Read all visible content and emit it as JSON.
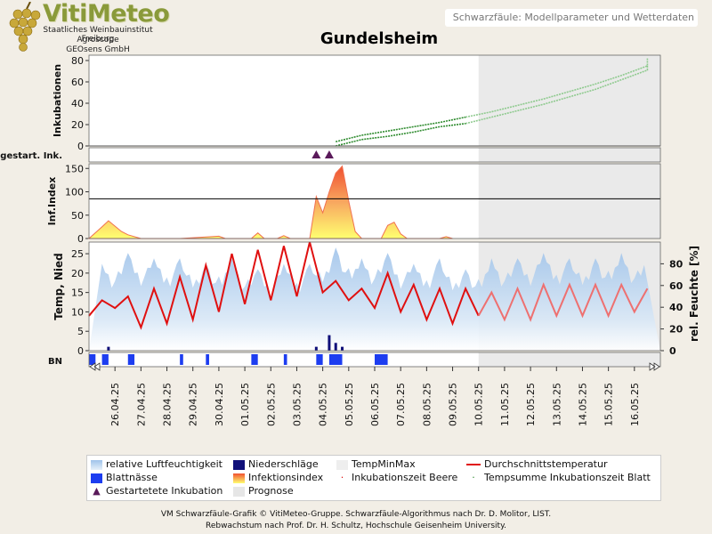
{
  "logo": {
    "title": "VitiMeteo",
    "lines": [
      "Staatliches Weinbauinstitut Freiburg",
      "Agroscope",
      "GEOsens GmbH"
    ]
  },
  "header": {
    "title": "Schwarzfäule: Modellparameter und Wetterdaten"
  },
  "location": "Gundelsheim",
  "footer": {
    "line1": "VM Schwarzfäule-Grafik © VitiMeteo-Gruppe. Schwarzfäule-Algorithmus nach Dr. D. Molitor, LIST.",
    "line2": "Rebwachstum nach Prof. Dr. H. Schultz, Hochschule Geisenheim University."
  },
  "colors": {
    "humidity": "#9fc3ea",
    "rain": "#10107a",
    "leafwet": "#1d3df0",
    "temp": "#e01010",
    "tempForecast": "#ee7070",
    "incubation": "#2e8b2e",
    "incubationForecast": "#8fca8f",
    "prognosis": "#e6e6e6",
    "marker": "#5a1a5a"
  },
  "legend": {
    "items": [
      {
        "label": "relative Luftfeuchtigkeit",
        "icon": "humidity-swatch"
      },
      {
        "label": "Niederschläge",
        "icon": "rain-swatch"
      },
      {
        "label": "TempMinMax",
        "icon": "tempminmax-swatch"
      },
      {
        "label": "Durchschnittstemperatur",
        "icon": "line-swatch"
      },
      {
        "label": "Blattnässe",
        "icon": "leafwet-swatch"
      },
      {
        "label": "Infektionsindex",
        "icon": "infection-swatch"
      },
      {
        "label": "Inkubationszeit Beere",
        "icon": "dot-swatch"
      },
      {
        "label": "Tempsumme Inkubationszeit Blatt",
        "icon": "dot-swatch"
      },
      {
        "label": "Gestartetete Inkubation",
        "icon": "triangle-swatch"
      },
      {
        "label": "Prognose",
        "icon": "prognosis-swatch"
      }
    ]
  },
  "chart_data": [
    {
      "type": "line",
      "ylabel": "Inkubationen",
      "ylim": [
        0,
        85
      ],
      "yticks": [
        0,
        20,
        40,
        60,
        80
      ],
      "threshold": 0,
      "series": [
        {
          "points": [
            [
              "04.05",
              0
            ],
            [
              "05.05",
              6
            ],
            [
              "06.05",
              9
            ],
            [
              "07.05",
              13
            ],
            [
              "08.05",
              18
            ],
            [
              "09.05",
              21
            ],
            [
              "10.05",
              27
            ],
            [
              "11.05",
              33
            ],
            [
              "12.05",
              39
            ],
            [
              "13.05",
              46
            ],
            [
              "14.05",
              53
            ],
            [
              "15.05",
              62
            ],
            [
              "16.05",
              71
            ],
            [
              "16.05 12:00",
              76
            ]
          ]
        },
        {
          "points": [
            [
              "04.05",
              4
            ],
            [
              "05.05",
              10
            ],
            [
              "06.05",
              14
            ],
            [
              "07.05",
              18
            ],
            [
              "08.05",
              22
            ],
            [
              "09.05",
              27
            ],
            [
              "10.05",
              32
            ],
            [
              "11.05",
              38
            ],
            [
              "12.05",
              44
            ],
            [
              "13.05",
              51
            ],
            [
              "14.05",
              58
            ],
            [
              "15.05",
              66
            ],
            [
              "16.05",
              75
            ],
            [
              "16.05 12:00",
              82
            ]
          ]
        }
      ]
    },
    {
      "type": "scatter",
      "ylabel": "gestart. Ink.",
      "markers": [
        "03.05 18:00",
        "04.05 06:00"
      ]
    },
    {
      "type": "area",
      "ylabel": "Inf.Index",
      "ylim": [
        0,
        160
      ],
      "yticks": [
        0,
        50,
        100,
        150
      ],
      "threshold": 85,
      "points": [
        [
          "25.04 00:00",
          0
        ],
        [
          "25.04 12:00",
          25
        ],
        [
          "25.04 18:00",
          38
        ],
        [
          "26.04 06:00",
          15
        ],
        [
          "26.04 12:00",
          8
        ],
        [
          "27.04 00:00",
          0
        ],
        [
          "28.04 12:00",
          0
        ],
        [
          "30.04 00:00",
          5
        ],
        [
          "30.04 06:00",
          0
        ],
        [
          "01.05 06:00",
          0
        ],
        [
          "01.05 12:00",
          12
        ],
        [
          "01.05 18:00",
          0
        ],
        [
          "02.05 06:00",
          0
        ],
        [
          "02.05 12:00",
          6
        ],
        [
          "02.05 18:00",
          0
        ],
        [
          "03.05 12:00",
          0
        ],
        [
          "03.05 18:00",
          90
        ],
        [
          "04.05 00:00",
          55
        ],
        [
          "04.05 06:00",
          100
        ],
        [
          "04.05 12:00",
          140
        ],
        [
          "04.05 18:00",
          155
        ],
        [
          "05.05 00:00",
          80
        ],
        [
          "05.05 06:00",
          15
        ],
        [
          "05.05 12:00",
          0
        ],
        [
          "06.05 06:00",
          0
        ],
        [
          "06.05 12:00",
          28
        ],
        [
          "06.05 18:00",
          35
        ],
        [
          "07.05 00:00",
          10
        ],
        [
          "07.05 06:00",
          0
        ],
        [
          "08.05 12:00",
          0
        ],
        [
          "08.05 18:00",
          4
        ],
        [
          "09.05 00:00",
          0
        ]
      ]
    },
    {
      "type": "line",
      "ylabel": "Temp, Nied",
      "y2label": "rel. Feuchte [%]",
      "ylim": [
        0,
        28
      ],
      "yticks": [
        0,
        5,
        10,
        15,
        20,
        25
      ],
      "y2lim": [
        0,
        100
      ],
      "y2ticks": [
        0,
        20,
        40,
        60,
        80
      ],
      "mean_temp": [
        [
          "25.04 00:00",
          9
        ],
        [
          "25.04 12:00",
          13
        ],
        [
          "26.04 00:00",
          11
        ],
        [
          "26.04 12:00",
          14
        ],
        [
          "27.04 00:00",
          6
        ],
        [
          "27.04 12:00",
          16
        ],
        [
          "28.04 00:00",
          7
        ],
        [
          "28.04 12:00",
          19
        ],
        [
          "29.04 00:00",
          8
        ],
        [
          "29.04 12:00",
          22
        ],
        [
          "30.04 00:00",
          10
        ],
        [
          "30.04 12:00",
          25
        ],
        [
          "01.05 00:00",
          12
        ],
        [
          "01.05 12:00",
          26
        ],
        [
          "02.05 00:00",
          13
        ],
        [
          "02.05 12:00",
          27
        ],
        [
          "03.05 00:00",
          14
        ],
        [
          "03.05 12:00",
          28
        ],
        [
          "04.05 00:00",
          15
        ],
        [
          "04.05 12:00",
          18
        ],
        [
          "05.05 00:00",
          13
        ],
        [
          "05.05 12:00",
          16
        ],
        [
          "06.05 00:00",
          11
        ],
        [
          "06.05 12:00",
          20
        ],
        [
          "07.05 00:00",
          10
        ],
        [
          "07.05 12:00",
          17
        ],
        [
          "08.05 00:00",
          8
        ],
        [
          "08.05 12:00",
          16
        ],
        [
          "09.05 00:00",
          7
        ],
        [
          "09.05 12:00",
          16
        ],
        [
          "10.05 00:00",
          9
        ]
      ],
      "forecast_temp": [
        [
          "10.05 00:00",
          9
        ],
        [
          "10.05 12:00",
          15
        ],
        [
          "11.05 00:00",
          8
        ],
        [
          "11.05 12:00",
          16
        ],
        [
          "12.05 00:00",
          8
        ],
        [
          "12.05 12:00",
          17
        ],
        [
          "13.05 00:00",
          9
        ],
        [
          "13.05 12:00",
          17
        ],
        [
          "14.05 00:00",
          9
        ],
        [
          "14.05 12:00",
          17
        ],
        [
          "15.05 00:00",
          9
        ],
        [
          "15.05 12:00",
          17
        ],
        [
          "16.05 00:00",
          10
        ],
        [
          "16.05 12:00",
          16
        ]
      ],
      "humidity": [
        [
          "25.04",
          80
        ],
        [
          "26.04",
          90
        ],
        [
          "27.04",
          85
        ],
        [
          "28.04",
          85
        ],
        [
          "29.04",
          80
        ],
        [
          "30.04",
          85
        ],
        [
          "01.05",
          75
        ],
        [
          "02.05",
          80
        ],
        [
          "03.05",
          80
        ],
        [
          "04.05",
          95
        ],
        [
          "05.05",
          85
        ],
        [
          "06.05",
          90
        ],
        [
          "07.05",
          80
        ],
        [
          "08.05",
          85
        ],
        [
          "09.05",
          75
        ],
        [
          "10.05",
          85
        ],
        [
          "11.05",
          85
        ],
        [
          "12.05",
          90
        ],
        [
          "13.05",
          85
        ],
        [
          "14.05",
          85
        ],
        [
          "15.05",
          90
        ],
        [
          "16.05",
          85
        ]
      ],
      "rain": [
        [
          "25.04 18:00",
          1
        ],
        [
          "03.05 18:00",
          1
        ],
        [
          "04.05 06:00",
          4
        ],
        [
          "04.05 12:00",
          2
        ],
        [
          "04.05 18:00",
          1
        ]
      ]
    },
    {
      "type": "bar",
      "ylabel": "BN",
      "intervals": [
        [
          "25.04 00:00",
          "25.04 06:00"
        ],
        [
          "25.04 12:00",
          "25.04 18:00"
        ],
        [
          "26.04 12:00",
          "26.04 18:00"
        ],
        [
          "28.04 12:00",
          "28.04 15:00"
        ],
        [
          "29.04 12:00",
          "29.04 15:00"
        ],
        [
          "01.05 06:00",
          "01.05 12:00"
        ],
        [
          "02.05 12:00",
          "02.05 15:00"
        ],
        [
          "03.05 18:00",
          "04.05 00:00"
        ],
        [
          "04.05 06:00",
          "04.05 18:00"
        ],
        [
          "06.05 00:00",
          "06.05 12:00"
        ]
      ]
    }
  ],
  "x_axis": {
    "labels": [
      "26.04.25",
      "27.04.25",
      "28.04.25",
      "29.04.25",
      "30.04.25",
      "01.05.25",
      "02.05.25",
      "03.05.25",
      "04.05.25",
      "05.05.25",
      "06.05.25",
      "07.05.25",
      "08.05.25",
      "09.05.25",
      "10.05.25",
      "11.05.25",
      "12.05.25",
      "13.05.25",
      "14.05.25",
      "15.05.25",
      "16.05.25"
    ],
    "prognosis_start": "10.05 00:00"
  }
}
